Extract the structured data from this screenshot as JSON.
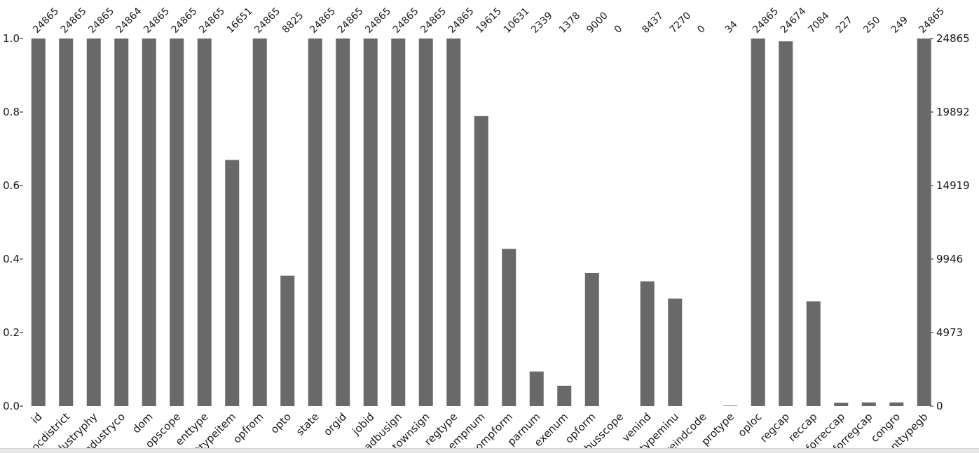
{
  "chart_data": {
    "type": "bar",
    "categories": [
      "id",
      "ocdistrict",
      "industryphy",
      "industryco",
      "dom",
      "opscope",
      "enttype",
      "enttypeitem",
      "opfrom",
      "opto",
      "state",
      "orgid",
      "jobid",
      "adbusign",
      "townsign",
      "regtype",
      "empnum",
      "compform",
      "parnum",
      "exenum",
      "opform",
      "ptbusscope",
      "venind",
      "enttypeminu",
      "midpreindcode",
      "protype",
      "oploc",
      "regcap",
      "reccap",
      "forreccap",
      "forregcap",
      "congro",
      "enttypegb"
    ],
    "values": [
      24865,
      24865,
      24865,
      24864,
      24865,
      24865,
      24865,
      16651,
      24865,
      8825,
      24865,
      24865,
      24865,
      24865,
      24865,
      24865,
      19615,
      10631,
      2339,
      1378,
      9000,
      0,
      8437,
      7270,
      0,
      34,
      24865,
      24674,
      7084,
      227,
      250,
      249,
      24865
    ],
    "count_labels": [
      "24865",
      "24865",
      "24865",
      "24864",
      "24865",
      "24865",
      "24865",
      "16651",
      "24865",
      "8825",
      "24865",
      "24865",
      "24865",
      "24865",
      "24865",
      "24865",
      "19615",
      "10631",
      "2339",
      "1378",
      "9000",
      "0",
      "8437",
      "7270",
      "0",
      "34",
      "24865",
      "24674",
      "7084",
      "227",
      "250",
      "249",
      "24865"
    ],
    "total": 24865,
    "ylim": [
      0,
      1.0
    ],
    "left_ticks": [
      "0.0",
      "0.2",
      "0.4",
      "0.6",
      "0.8",
      "1.0"
    ],
    "right_ticks": [
      "0",
      "4973",
      "9946",
      "14919",
      "19892",
      "24865"
    ],
    "title": "",
    "xlabel": "",
    "ylabel": "",
    "grid": false,
    "bar_color": "#696969"
  }
}
